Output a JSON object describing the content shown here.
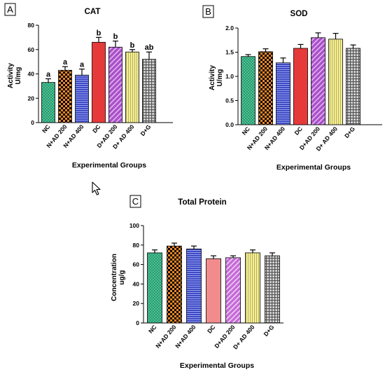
{
  "colors": {
    "NC": "#1f9e6e",
    "N+AD 200": "#e8862a",
    "N+AD 400": "#3d49c4",
    "DC": "#e63a3a",
    "D+AD 200": "#a94fc9",
    "D+ AD 400": "#f3ee96",
    "D+G": "#909090",
    "DC_protein": "#f28c8c",
    "D+AD200_protein": "#c56ad6"
  },
  "cursor_icon": "mouse-pointer-icon",
  "chart_data": [
    {
      "type": "bar",
      "panel": "A",
      "title": "CAT",
      "ylabel_line1": "Activity",
      "ylabel_line2": "U/mg",
      "xlabel": "Experimental Groups",
      "categories": [
        "NC",
        "N+AD 200",
        "N+AD 400",
        "DC",
        "D+AD 200",
        "D+ AD 400",
        "D+G"
      ],
      "values": [
        33,
        43,
        39,
        66,
        62,
        58,
        52
      ],
      "errors": [
        3,
        3,
        5,
        4,
        5,
        2,
        6
      ],
      "significance": [
        "a",
        "a",
        "a",
        "b",
        "b",
        "b",
        "ab"
      ],
      "ylim": [
        0,
        80
      ],
      "yticks": [
        0,
        20,
        40,
        60,
        80
      ]
    },
    {
      "type": "bar",
      "panel": "B",
      "title": "SOD",
      "ylabel_line1": "Activity",
      "ylabel_line2": "U/mg",
      "xlabel": "Experimental Groups",
      "categories": [
        "NC",
        "N+AD 200",
        "N+AD 400",
        "DC",
        "D+AD 200",
        "D+ AD 400",
        "D+G"
      ],
      "values": [
        1.41,
        1.51,
        1.28,
        1.58,
        1.8,
        1.77,
        1.58
      ],
      "errors": [
        0.04,
        0.06,
        0.1,
        0.08,
        0.1,
        0.12,
        0.07
      ],
      "significance": [],
      "ylim": [
        0,
        2.0
      ],
      "yticks": [
        0.0,
        0.5,
        1.0,
        1.5,
        2.0
      ]
    },
    {
      "type": "bar",
      "panel": "C",
      "title": "Total Protein",
      "ylabel_line1": "Concentration",
      "ylabel_line2": "ug/g",
      "xlabel": "Experimental Groups",
      "categories": [
        "NC",
        "N+AD 200",
        "N+AD 400",
        "DC",
        "D+AD 200",
        "D+ AD 400",
        "D+G"
      ],
      "values": [
        72,
        79,
        76,
        66,
        67,
        72,
        69
      ],
      "errors": [
        3,
        3,
        3,
        3,
        2,
        3,
        3
      ],
      "significance": [],
      "ylim": [
        0,
        100
      ],
      "yticks": [
        0,
        20,
        40,
        60,
        80,
        100
      ]
    }
  ]
}
